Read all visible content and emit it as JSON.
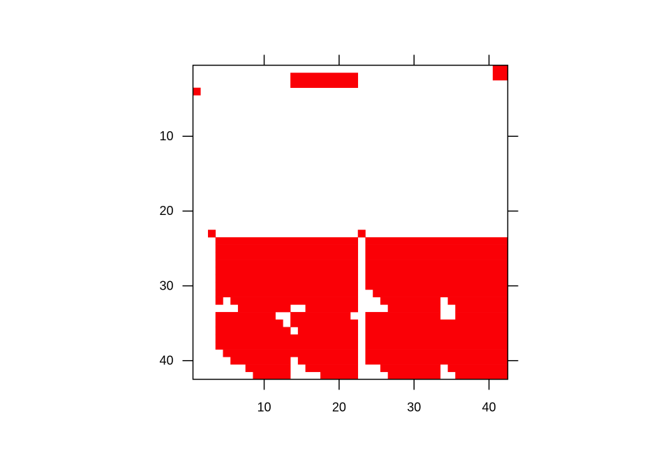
{
  "chart_data": {
    "type": "heatmap",
    "title": "",
    "xlabel": "",
    "ylabel": "",
    "nrows": 42,
    "ncols": 42,
    "xlim": [
      0.5,
      42.5
    ],
    "ylim": [
      0.5,
      42.5
    ],
    "y_reversed": true,
    "x_ticks": [
      10,
      20,
      30,
      40
    ],
    "y_ticks": [
      10,
      20,
      30,
      40
    ],
    "x_tick_labels": [
      "10",
      "20",
      "30",
      "40"
    ],
    "y_tick_labels": [
      "10",
      "20",
      "30",
      "40"
    ],
    "fill_color": "#FA0006",
    "background_color": "#FFFFFF",
    "frame_color": "#000000",
    "filled_runs_by_row": {
      "1": [
        [
          41,
          42
        ]
      ],
      "2": [
        [
          14,
          22
        ],
        [
          41,
          42
        ]
      ],
      "3": [
        [
          14,
          22
        ]
      ],
      "4": [
        [
          1,
          1
        ]
      ],
      "23": [
        [
          3,
          3
        ],
        [
          23,
          23
        ]
      ],
      "24": [
        [
          4,
          22
        ],
        [
          24,
          42
        ]
      ],
      "25": [
        [
          4,
          22
        ],
        [
          24,
          42
        ]
      ],
      "26": [
        [
          4,
          22
        ],
        [
          24,
          42
        ]
      ],
      "27": [
        [
          4,
          22
        ],
        [
          24,
          42
        ]
      ],
      "28": [
        [
          4,
          22
        ],
        [
          24,
          42
        ]
      ],
      "29": [
        [
          4,
          22
        ],
        [
          24,
          42
        ]
      ],
      "30": [
        [
          4,
          22
        ],
        [
          24,
          42
        ]
      ],
      "31": [
        [
          4,
          22
        ],
        [
          25,
          42
        ]
      ],
      "32": [
        [
          4,
          4
        ],
        [
          6,
          22
        ],
        [
          26,
          33
        ],
        [
          35,
          42
        ]
      ],
      "33": [
        [
          7,
          13
        ],
        [
          16,
          22
        ],
        [
          27,
          33
        ],
        [
          36,
          42
        ]
      ],
      "34": [
        [
          4,
          11
        ],
        [
          14,
          21
        ],
        [
          24,
          33
        ],
        [
          36,
          42
        ]
      ],
      "35": [
        [
          4,
          12
        ],
        [
          14,
          22
        ],
        [
          24,
          42
        ]
      ],
      "36": [
        [
          4,
          13
        ],
        [
          15,
          22
        ],
        [
          24,
          42
        ]
      ],
      "37": [
        [
          4,
          22
        ],
        [
          24,
          42
        ]
      ],
      "38": [
        [
          4,
          22
        ],
        [
          24,
          42
        ]
      ],
      "39": [
        [
          5,
          22
        ],
        [
          24,
          42
        ]
      ],
      "40": [
        [
          6,
          13
        ],
        [
          15,
          22
        ],
        [
          24,
          42
        ]
      ],
      "41": [
        [
          8,
          13
        ],
        [
          16,
          22
        ],
        [
          26,
          33
        ],
        [
          35,
          42
        ]
      ],
      "42": [
        [
          9,
          13
        ],
        [
          18,
          22
        ],
        [
          27,
          33
        ],
        [
          36,
          42
        ]
      ]
    }
  }
}
